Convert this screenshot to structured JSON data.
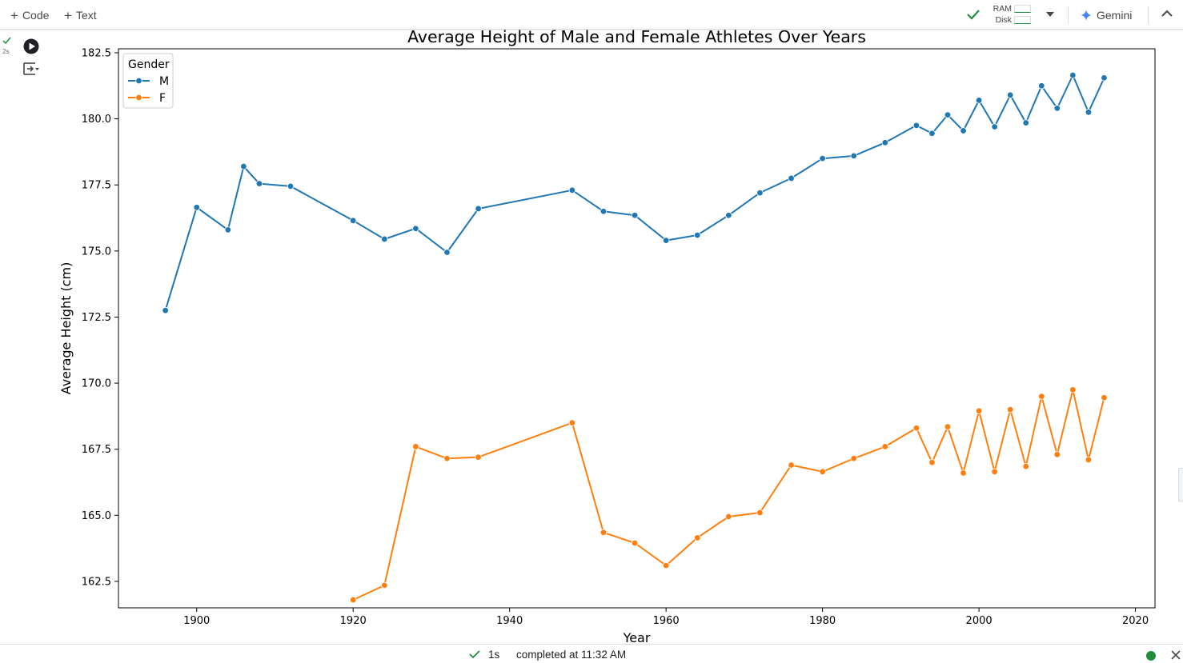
{
  "toolbar": {
    "code_label": "Code",
    "text_label": "Text",
    "ram_label": "RAM",
    "disk_label": "Disk",
    "gemini_label": "Gemini"
  },
  "cell": {
    "exec_time": "2s"
  },
  "status": {
    "duration": "1s",
    "text": "completed at 11:32 AM"
  },
  "colors": {
    "series_m": "#1f77b4",
    "series_f": "#ff7f0e",
    "success_green": "#1e8e3e",
    "gemini_blue": "#4285f4"
  },
  "icons": {
    "add": "plus-icon",
    "connected": "check-icon",
    "run": "play-circle-icon",
    "output": "output-toggle-icon",
    "dropdown": "chevron-down-icon",
    "gemini": "sparkle-icon",
    "collapse": "chevron-up-icon",
    "close": "close-icon"
  },
  "chart_data": {
    "type": "line",
    "title": "Average Height of Male and Female Athletes Over Years",
    "xlabel": "Year",
    "ylabel": "Average Height (cm)",
    "xlim": [
      1890,
      2022.5
    ],
    "ylim": [
      161.5,
      182.65
    ],
    "xticks": [
      1900,
      1920,
      1940,
      1960,
      1980,
      2000,
      2020
    ],
    "yticks": [
      162.5,
      165.0,
      167.5,
      170.0,
      172.5,
      175.0,
      177.5,
      180.0,
      182.5
    ],
    "grid": false,
    "markers": true,
    "legend": {
      "title": "Gender",
      "placement": "top-left"
    },
    "series": [
      {
        "name": "M",
        "color": "#1f77b4",
        "x": [
          1896,
          1900,
          1904,
          1906,
          1908,
          1912,
          1920,
          1924,
          1928,
          1932,
          1936,
          1948,
          1952,
          1956,
          1960,
          1964,
          1968,
          1972,
          1976,
          1980,
          1984,
          1988,
          1992,
          1994,
          1996,
          1998,
          2000,
          2002,
          2004,
          2006,
          2008,
          2010,
          2012,
          2014,
          2016
        ],
        "values": [
          172.75,
          176.65,
          175.8,
          178.2,
          177.55,
          177.45,
          176.15,
          175.45,
          175.85,
          174.95,
          176.6,
          177.3,
          176.5,
          176.35,
          175.4,
          175.6,
          176.35,
          177.2,
          177.75,
          178.5,
          178.6,
          179.1,
          179.75,
          179.45,
          180.15,
          179.55,
          180.7,
          179.7,
          180.9,
          179.85,
          181.25,
          180.4,
          181.65,
          180.25,
          181.55
        ]
      },
      {
        "name": "F",
        "color": "#ff7f0e",
        "x": [
          1920,
          1924,
          1928,
          1932,
          1936,
          1948,
          1952,
          1956,
          1960,
          1964,
          1968,
          1972,
          1976,
          1980,
          1984,
          1988,
          1992,
          1994,
          1996,
          1998,
          2000,
          2002,
          2004,
          2006,
          2008,
          2010,
          2012,
          2014,
          2016
        ],
        "values": [
          161.8,
          162.35,
          167.6,
          167.15,
          167.2,
          168.5,
          164.35,
          163.95,
          163.1,
          164.15,
          164.95,
          165.1,
          166.9,
          166.65,
          167.15,
          167.6,
          168.3,
          167.0,
          168.35,
          166.6,
          168.95,
          166.65,
          169.0,
          166.85,
          169.5,
          167.3,
          169.75,
          167.1,
          169.45
        ]
      }
    ]
  }
}
